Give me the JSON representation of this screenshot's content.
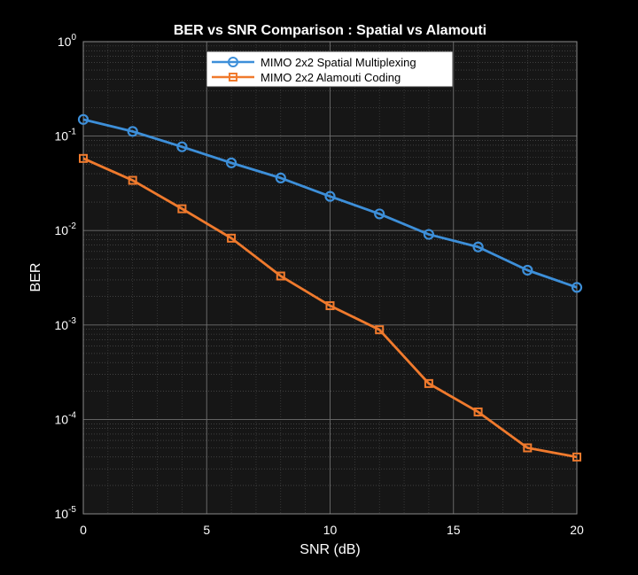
{
  "chart_data": {
    "type": "line",
    "title": "BER vs SNR Comparison : Spatial vs Alamouti",
    "xlabel": "SNR (dB)",
    "ylabel": "BER",
    "xlim": [
      0,
      20
    ],
    "ylim": [
      1e-05,
      1
    ],
    "yscale": "log",
    "grid": true,
    "minor_grid": true,
    "legend_location": "top-center",
    "x_ticks": [
      0,
      5,
      10,
      15,
      20
    ],
    "x_tick_labels": [
      "0",
      "5",
      "10",
      "15",
      "20"
    ],
    "y_tick_exponents": [
      0,
      -1,
      -2,
      -3,
      -4,
      -5
    ],
    "x": [
      0,
      2,
      4,
      6,
      8,
      10,
      12,
      14,
      16,
      18,
      20
    ],
    "series": [
      {
        "name": "MIMO 2x2 Spatial Multiplexing",
        "color": "#3d8fd9",
        "marker": "circle",
        "values": [
          0.15,
          0.112,
          0.077,
          0.052,
          0.036,
          0.023,
          0.015,
          0.0091,
          0.0067,
          0.0038,
          0.0025
        ]
      },
      {
        "name": "MIMO 2x2 Alamouti Coding",
        "color": "#f07a2d",
        "marker": "square",
        "values": [
          0.058,
          0.034,
          0.017,
          0.0083,
          0.0033,
          0.0016,
          0.00089,
          0.00024,
          0.00012,
          5e-05,
          4e-05
        ]
      }
    ]
  }
}
